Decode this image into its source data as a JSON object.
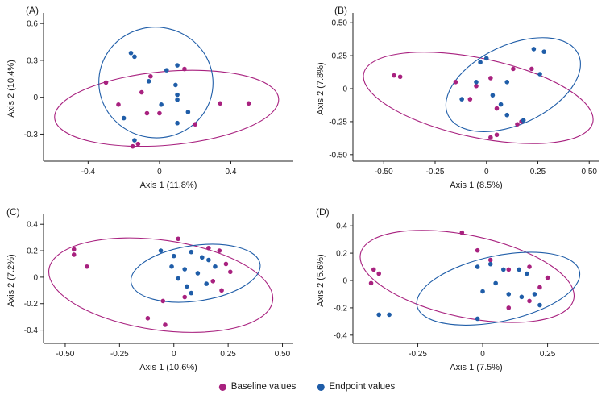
{
  "figure": {
    "background": "#ffffff",
    "axis_color": "#222222",
    "text_color": "#1a1a1a"
  },
  "legend": {
    "items": [
      {
        "label": "Baseline values",
        "color": "#a8217f"
      },
      {
        "label": "Endpoint values",
        "color": "#1f5da8"
      }
    ]
  },
  "chart_data": [
    {
      "type": "scatter",
      "panel_label": "(A)",
      "xlabel": "Axis 1 (11.8%)",
      "ylabel": "Axis 2 (10.4%)",
      "xlim": [
        -0.65,
        0.75
      ],
      "ylim": [
        -0.52,
        0.66
      ],
      "xtick_vals": [
        -0.4,
        0,
        0.4
      ],
      "xtick_labels": [
        "-0.4",
        "0",
        "0.4"
      ],
      "ytick_vals": [
        -0.3,
        0,
        0.3,
        0.6
      ],
      "ytick_labels": [
        "-0.3",
        "0",
        "0.3",
        "0.6"
      ],
      "grid": false,
      "series": [
        {
          "name": "Baseline values",
          "color": "#a8217f",
          "points": [
            [
              -0.3,
              0.12
            ],
            [
              -0.05,
              0.17
            ],
            [
              0.14,
              0.23
            ],
            [
              -0.1,
              0.04
            ],
            [
              -0.23,
              -0.06
            ],
            [
              0.0,
              -0.13
            ],
            [
              -0.07,
              -0.13
            ],
            [
              0.34,
              -0.05
            ],
            [
              0.5,
              -0.05
            ],
            [
              0.2,
              -0.22
            ],
            [
              -0.15,
              -0.4
            ],
            [
              -0.12,
              -0.38
            ]
          ],
          "ellipse": {
            "cx": 0.04,
            "cy": -0.09,
            "rx": 0.63,
            "ry": 0.3,
            "angle_deg": -5
          }
        },
        {
          "name": "Endpoint values",
          "color": "#1f5da8",
          "points": [
            [
              -0.16,
              0.36
            ],
            [
              -0.14,
              0.33
            ],
            [
              0.1,
              0.26
            ],
            [
              0.04,
              0.22
            ],
            [
              -0.06,
              0.13
            ],
            [
              0.09,
              0.1
            ],
            [
              0.1,
              0.02
            ],
            [
              0.1,
              -0.02
            ],
            [
              0.01,
              -0.06
            ],
            [
              -0.2,
              -0.17
            ],
            [
              0.16,
              -0.12
            ],
            [
              0.1,
              -0.21
            ],
            [
              -0.14,
              -0.35
            ]
          ],
          "ellipse": {
            "cx": -0.02,
            "cy": 0.12,
            "rx": 0.32,
            "ry": 0.45,
            "angle_deg": 8
          }
        }
      ]
    },
    {
      "type": "scatter",
      "panel_label": "(B)",
      "xlabel": "Axis 1 (8.5%)",
      "ylabel": "Axis 2 (7.8%)",
      "xlim": [
        -0.65,
        0.55
      ],
      "ylim": [
        -0.55,
        0.55
      ],
      "xtick_vals": [
        -0.5,
        -0.25,
        0,
        0.25,
        0.5
      ],
      "xtick_labels": [
        "-0.50",
        "-0.25",
        "0",
        "0.25",
        "0.50"
      ],
      "ytick_vals": [
        -0.5,
        -0.25,
        0,
        0.25,
        0.5
      ],
      "ytick_labels": [
        "-0.50",
        "-0.25",
        "0",
        "0.25",
        "0.50"
      ],
      "grid": false,
      "series": [
        {
          "name": "Baseline values",
          "color": "#a8217f",
          "points": [
            [
              -0.45,
              0.1
            ],
            [
              -0.42,
              0.09
            ],
            [
              -0.15,
              0.05
            ],
            [
              -0.05,
              0.02
            ],
            [
              0.02,
              0.08
            ],
            [
              0.13,
              0.15
            ],
            [
              0.22,
              0.15
            ],
            [
              -0.08,
              -0.08
            ],
            [
              0.05,
              -0.15
            ],
            [
              0.15,
              -0.27
            ],
            [
              0.17,
              -0.25
            ],
            [
              0.05,
              -0.35
            ],
            [
              0.02,
              -0.37
            ]
          ],
          "ellipse": {
            "cx": -0.04,
            "cy": -0.07,
            "rx": 0.57,
            "ry": 0.3,
            "angle_deg": 12
          }
        },
        {
          "name": "Endpoint values",
          "color": "#1f5da8",
          "points": [
            [
              -0.03,
              0.2
            ],
            [
              0.0,
              0.23
            ],
            [
              0.23,
              0.3
            ],
            [
              0.28,
              0.28
            ],
            [
              0.26,
              0.11
            ],
            [
              0.1,
              0.05
            ],
            [
              -0.05,
              0.05
            ],
            [
              0.03,
              -0.05
            ],
            [
              -0.12,
              -0.08
            ],
            [
              0.07,
              -0.12
            ],
            [
              0.1,
              -0.2
            ],
            [
              0.18,
              -0.24
            ]
          ],
          "ellipse": {
            "cx": 0.13,
            "cy": 0.03,
            "rx": 0.35,
            "ry": 0.3,
            "angle_deg": -25
          }
        }
      ]
    },
    {
      "type": "scatter",
      "panel_label": "(C)",
      "xlabel": "Axis 1 (10.6%)",
      "ylabel": "Axis 2 (7.2%)",
      "xlim": [
        -0.6,
        0.55
      ],
      "ylim": [
        -0.5,
        0.45
      ],
      "xtick_vals": [
        -0.5,
        -0.25,
        0,
        0.25,
        0.5
      ],
      "xtick_labels": [
        "-0.50",
        "-0.25",
        "0",
        "0.25",
        "0.50"
      ],
      "ytick_vals": [
        -0.4,
        -0.2,
        0,
        0.2,
        0.4
      ],
      "ytick_labels": [
        "-0.4",
        "-0.2",
        "0",
        "0.2",
        "0.4"
      ],
      "grid": false,
      "series": [
        {
          "name": "Baseline values",
          "color": "#a8217f",
          "points": [
            [
              -0.46,
              0.21
            ],
            [
              -0.46,
              0.17
            ],
            [
              -0.4,
              0.08
            ],
            [
              0.02,
              0.29
            ],
            [
              0.16,
              0.22
            ],
            [
              0.21,
              0.2
            ],
            [
              0.24,
              0.1
            ],
            [
              0.26,
              0.04
            ],
            [
              0.18,
              -0.03
            ],
            [
              0.22,
              -0.1
            ],
            [
              0.05,
              -0.15
            ],
            [
              -0.05,
              -0.18
            ],
            [
              -0.12,
              -0.31
            ],
            [
              -0.04,
              -0.36
            ]
          ],
          "ellipse": {
            "cx": -0.06,
            "cy": -0.06,
            "rx": 0.52,
            "ry": 0.34,
            "angle_deg": 8
          }
        },
        {
          "name": "Endpoint values",
          "color": "#1f5da8",
          "points": [
            [
              -0.06,
              0.2
            ],
            [
              0.0,
              0.16
            ],
            [
              0.08,
              0.19
            ],
            [
              0.13,
              0.15
            ],
            [
              0.16,
              0.13
            ],
            [
              0.05,
              0.06
            ],
            [
              0.11,
              0.03
            ],
            [
              0.02,
              -0.01
            ],
            [
              0.15,
              -0.05
            ],
            [
              0.08,
              -0.12
            ],
            [
              0.19,
              0.08
            ],
            [
              -0.01,
              0.08
            ],
            [
              0.06,
              -0.07
            ]
          ],
          "ellipse": {
            "cx": 0.1,
            "cy": 0.03,
            "rx": 0.3,
            "ry": 0.21,
            "angle_deg": -8
          }
        }
      ]
    },
    {
      "type": "scatter",
      "panel_label": "(D)",
      "xlabel": "Axis 1 (7.5%)",
      "ylabel": "Axis 2 (5.6%)",
      "xlim": [
        -0.5,
        0.45
      ],
      "ylim": [
        -0.46,
        0.46
      ],
      "xtick_vals": [
        -0.25,
        0,
        0.25
      ],
      "xtick_labels": [
        "-0.25",
        "0",
        "0.25"
      ],
      "ytick_vals": [
        -0.4,
        -0.2,
        0,
        0.2,
        0.4
      ],
      "ytick_labels": [
        "-0.4",
        "-0.2",
        "0",
        "0.2",
        "0.4"
      ],
      "grid": false,
      "series": [
        {
          "name": "Baseline values",
          "color": "#a8217f",
          "points": [
            [
              -0.42,
              0.08
            ],
            [
              -0.4,
              0.05
            ],
            [
              -0.43,
              -0.02
            ],
            [
              -0.08,
              0.35
            ],
            [
              -0.02,
              0.22
            ],
            [
              0.03,
              0.15
            ],
            [
              0.18,
              0.1
            ],
            [
              0.1,
              0.08
            ],
            [
              0.25,
              0.02
            ],
            [
              0.22,
              -0.05
            ],
            [
              0.18,
              -0.15
            ],
            [
              0.1,
              -0.2
            ]
          ],
          "ellipse": {
            "cx": -0.06,
            "cy": 0.03,
            "rx": 0.42,
            "ry": 0.3,
            "angle_deg": 12
          }
        },
        {
          "name": "Endpoint values",
          "color": "#1f5da8",
          "points": [
            [
              -0.4,
              -0.25
            ],
            [
              -0.36,
              -0.25
            ],
            [
              -0.02,
              0.1
            ],
            [
              0.03,
              0.12
            ],
            [
              0.08,
              0.08
            ],
            [
              0.14,
              0.08
            ],
            [
              0.17,
              0.05
            ],
            [
              0.05,
              -0.02
            ],
            [
              0.0,
              -0.08
            ],
            [
              0.1,
              -0.1
            ],
            [
              0.15,
              -0.12
            ],
            [
              0.2,
              -0.1
            ],
            [
              -0.02,
              -0.28
            ],
            [
              0.22,
              -0.18
            ]
          ],
          "ellipse": {
            "cx": 0.06,
            "cy": -0.06,
            "rx": 0.32,
            "ry": 0.24,
            "angle_deg": -12
          }
        }
      ]
    }
  ]
}
